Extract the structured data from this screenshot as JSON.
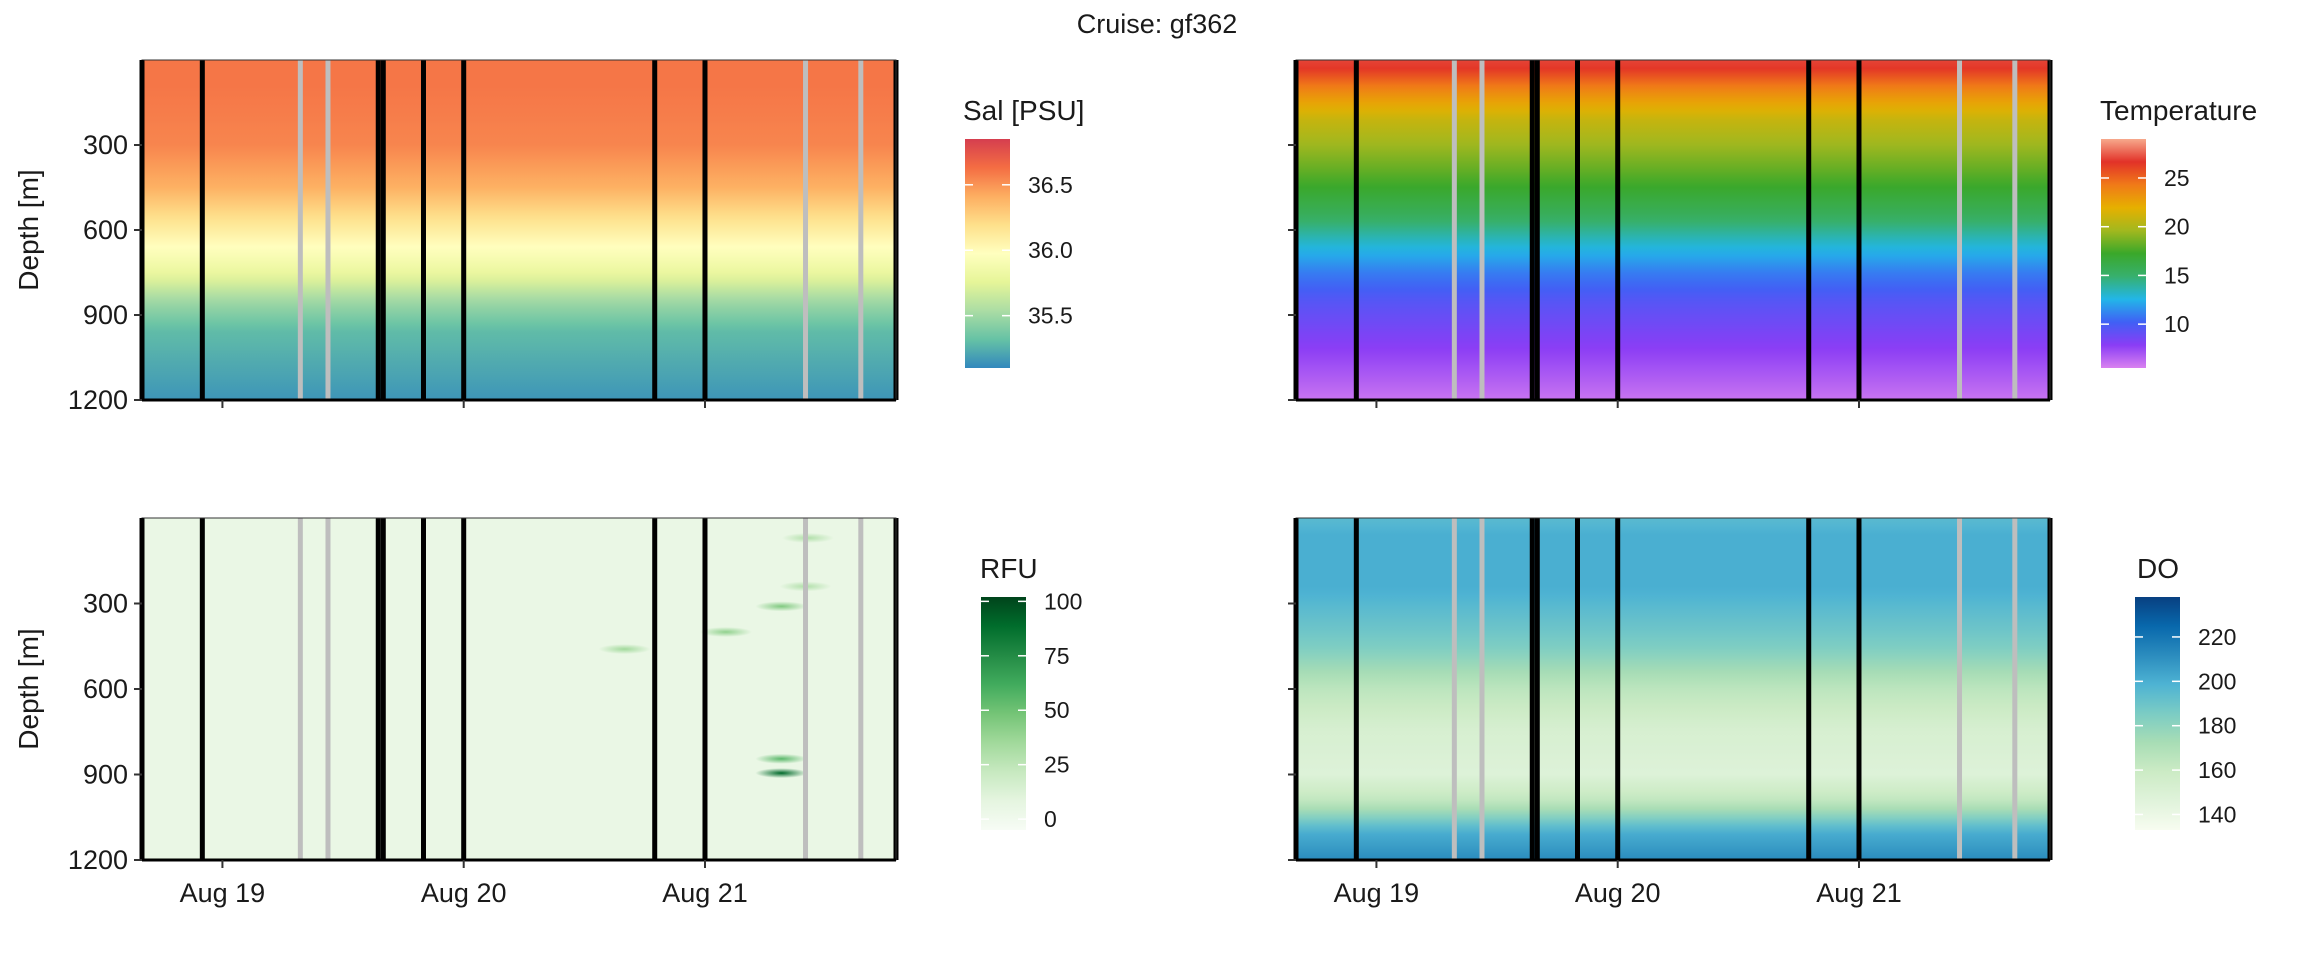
{
  "figure_title": "Cruise: gf362",
  "chart_data": [
    {
      "type": "heatmap",
      "variable": "salinity",
      "ylabel": "Depth [m]",
      "y_ticks": [
        300,
        600,
        900,
        1200
      ],
      "ylim": [
        0,
        1200
      ],
      "y_reversed": true,
      "x_ticks": [
        "Aug 19",
        "Aug 20",
        "Aug 21"
      ],
      "x_tick_labels_shown": false,
      "y_tick_labels_shown": true,
      "legend": {
        "title": "Sal [PSU]",
        "min": 35.1,
        "max": 36.85,
        "ticks": [
          35.5,
          36.0,
          36.5
        ],
        "tick_labels": [
          "35.5",
          "36.0",
          "36.5"
        ],
        "colors": [
          "#3288bd",
          "#66c2a5",
          "#abdda4",
          "#e6f598",
          "#ffffbf",
          "#fee08b",
          "#fdae61",
          "#f46d43",
          "#d53e4f"
        ]
      },
      "profile": [
        [
          0,
          36.6
        ],
        [
          100,
          36.6
        ],
        [
          300,
          36.55
        ],
        [
          450,
          36.4
        ],
        [
          550,
          36.2
        ],
        [
          650,
          36.0
        ],
        [
          750,
          35.8
        ],
        [
          850,
          35.5
        ],
        [
          950,
          35.3
        ],
        [
          1200,
          35.15
        ]
      ]
    },
    {
      "type": "heatmap",
      "variable": "temperature",
      "ylabel": "",
      "y_ticks": [
        300,
        600,
        900,
        1200
      ],
      "ylim": [
        0,
        1200
      ],
      "y_reversed": true,
      "x_ticks": [
        "Aug 19",
        "Aug 20",
        "Aug 21"
      ],
      "x_tick_labels_shown": false,
      "y_tick_labels_shown": false,
      "legend": {
        "title": "Temperature",
        "min": 5.5,
        "max": 29,
        "ticks": [
          10,
          15,
          20,
          25
        ],
        "tick_labels": [
          "10",
          "15",
          "20",
          "25"
        ],
        "colors": [
          "#d982f0",
          "#8a3df5",
          "#4060f5",
          "#22b6e8",
          "#37b06e",
          "#3aa82a",
          "#a2b81e",
          "#e6b000",
          "#f07a18",
          "#e23228",
          "#f7a98c"
        ]
      },
      "profile": [
        [
          0,
          27
        ],
        [
          30,
          26.5
        ],
        [
          100,
          24
        ],
        [
          200,
          21
        ],
        [
          400,
          18
        ],
        [
          550,
          15.5
        ],
        [
          650,
          13
        ],
        [
          750,
          11
        ],
        [
          850,
          9.5
        ],
        [
          950,
          8.5
        ],
        [
          1200,
          6
        ]
      ]
    },
    {
      "type": "heatmap",
      "variable": "chlorophyll_fluorescence",
      "ylabel": "Depth [m]",
      "y_ticks": [
        300,
        600,
        900,
        1200
      ],
      "ylim": [
        0,
        1200
      ],
      "y_reversed": true,
      "x_ticks": [
        "Aug 19",
        "Aug 20",
        "Aug 21"
      ],
      "x_tick_labels_shown": true,
      "y_tick_labels_shown": true,
      "legend": {
        "title": "RFU",
        "min": -5,
        "max": 102,
        "ticks": [
          0,
          25,
          50,
          75,
          100
        ],
        "tick_labels": [
          "0",
          "25",
          "50",
          "75",
          "100"
        ],
        "colors": [
          "#f7fcf5",
          "#e5f5e0",
          "#c7e9c0",
          "#a1d99b",
          "#74c476",
          "#41ab5d",
          "#238b45",
          "#006d2c",
          "#00441b"
        ]
      },
      "profile": [
        [
          0,
          5
        ],
        [
          1200,
          5
        ]
      ],
      "spikes": [
        {
          "time": 2.0,
          "depth": 460,
          "value": 35
        },
        {
          "time": 2.42,
          "depth": 400,
          "value": 40
        },
        {
          "time": 2.65,
          "depth": 310,
          "value": 45
        },
        {
          "time": 2.75,
          "depth": 240,
          "value": 30
        },
        {
          "time": 2.76,
          "depth": 70,
          "value": 30
        },
        {
          "time": 2.65,
          "depth": 845,
          "value": 55
        },
        {
          "time": 2.65,
          "depth": 895,
          "value": 90
        }
      ]
    },
    {
      "type": "heatmap",
      "variable": "dissolved_oxygen",
      "ylabel": "",
      "y_ticks": [
        300,
        600,
        900,
        1200
      ],
      "ylim": [
        0,
        1200
      ],
      "y_reversed": true,
      "x_ticks": [
        "Aug 19",
        "Aug 20",
        "Aug 21"
      ],
      "x_tick_labels_shown": true,
      "y_tick_labels_shown": false,
      "legend": {
        "title": "DO",
        "min": 133,
        "max": 238,
        "ticks": [
          140,
          160,
          180,
          200,
          220
        ],
        "tick_labels": [
          "140",
          "160",
          "180",
          "200",
          "220"
        ],
        "colors": [
          "#f7fcf0",
          "#e0f3db",
          "#ccebc5",
          "#a8ddb5",
          "#7bccc4",
          "#4eb3d3",
          "#2b8cbe",
          "#0868ac",
          "#084081"
        ]
      },
      "profile": [
        [
          0,
          195
        ],
        [
          60,
          200
        ],
        [
          250,
          200
        ],
        [
          450,
          185
        ],
        [
          600,
          165
        ],
        [
          750,
          152
        ],
        [
          900,
          148
        ],
        [
          1000,
          165
        ],
        [
          1100,
          200
        ],
        [
          1200,
          212
        ]
      ]
    }
  ],
  "x_axis": {
    "start": "2023-08-18T16:00",
    "end": "2023-08-21T19:00",
    "tick_times": [
      "2023-08-19",
      "2023-08-20",
      "2023-08-21"
    ],
    "tick_labels": [
      "Aug 19",
      "Aug 20",
      "Aug 21"
    ]
  },
  "profile_lines": [
    {
      "time": "2023-08-18T16:00",
      "color": "#000000"
    },
    {
      "time": "2023-08-18T22:00",
      "color": "#000000"
    },
    {
      "time": "2023-08-19T07:45",
      "color": "#bebebe"
    },
    {
      "time": "2023-08-19T10:30",
      "color": "#bebebe"
    },
    {
      "time": "2023-08-19T15:30",
      "color": "#000000"
    },
    {
      "time": "2023-08-19T16:00",
      "color": "#000000"
    },
    {
      "time": "2023-08-19T20:00",
      "color": "#000000"
    },
    {
      "time": "2023-08-20T00:00",
      "color": "#000000"
    },
    {
      "time": "2023-08-20T19:00",
      "color": "#000000"
    },
    {
      "time": "2023-08-21T00:00",
      "color": "#000000"
    },
    {
      "time": "2023-08-21T10:00",
      "color": "#bebebe"
    },
    {
      "time": "2023-08-21T15:30",
      "color": "#bebebe"
    },
    {
      "time": "2023-08-21T19:00",
      "color": "#000000"
    }
  ]
}
